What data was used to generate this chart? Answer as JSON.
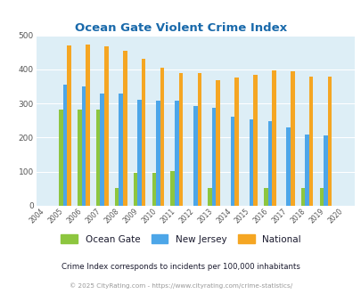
{
  "title": "Ocean Gate Violent Crime Index",
  "years": [
    2004,
    2005,
    2006,
    2007,
    2008,
    2009,
    2010,
    2011,
    2012,
    2013,
    2014,
    2015,
    2016,
    2017,
    2018,
    2019,
    2020
  ],
  "ocean_gate": [
    0,
    283,
    283,
    283,
    52,
    96,
    96,
    102,
    0,
    52,
    0,
    0,
    52,
    0,
    52,
    52,
    0
  ],
  "new_jersey": [
    0,
    355,
    350,
    328,
    330,
    311,
    309,
    309,
    292,
    287,
    260,
    254,
    247,
    230,
    210,
    207,
    0
  ],
  "national": [
    0,
    469,
    474,
    467,
    455,
    432,
    405,
    389,
    388,
    368,
    376,
    383,
    397,
    394,
    380,
    379,
    0
  ],
  "ocean_gate_color": "#8dc63f",
  "new_jersey_color": "#4da6e8",
  "national_color": "#f5a623",
  "plot_bg": "#ddeef6",
  "ylim": [
    0,
    500
  ],
  "yticks": [
    0,
    100,
    200,
    300,
    400,
    500
  ],
  "legend_labels": [
    "Ocean Gate",
    "New Jersey",
    "National"
  ],
  "footnote1": "Crime Index corresponds to incidents per 100,000 inhabitants",
  "footnote2": "© 2025 CityRating.com - https://www.cityrating.com/crime-statistics/",
  "title_color": "#1a6aab",
  "footnote1_color": "#1a1a2e",
  "footnote2_color": "#999999",
  "bar_width": 0.22
}
